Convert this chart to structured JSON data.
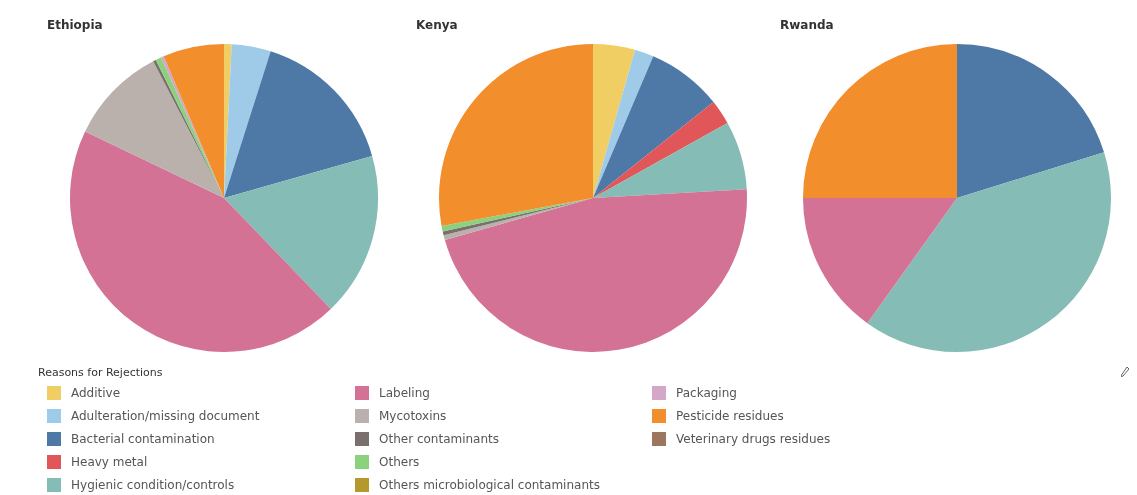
{
  "chart_data": {
    "type": "pie",
    "legend": "bottom",
    "legend_title": "Reasons for Rejections",
    "categories": [
      "Additive",
      "Adulteration/missing document",
      "Bacterial contamination",
      "Heavy metal",
      "Hygienic condition/controls",
      "Labeling",
      "Mycotoxins",
      "Other contaminants",
      "Others",
      "Others microbiological contaminants",
      "Packaging",
      "Pesticide residues",
      "Veterinary drugs residues"
    ],
    "colors": [
      "#f1ce63",
      "#a0cbe8",
      "#4e79a7",
      "#e15759",
      "#86bcb6",
      "#d37295",
      "#bab0ac",
      "#79706e",
      "#8cd17d",
      "#b6992d",
      "#d4a6c8",
      "#f28e2b",
      "#9d7660"
    ],
    "series": [
      {
        "name": "Ethiopia",
        "values": [
          0.8,
          4.1,
          15.7,
          0,
          17.2,
          44.3,
          10.3,
          0.3,
          0.6,
          0,
          0.3,
          6.4,
          0
        ]
      },
      {
        "name": "Kenya",
        "values": [
          4.4,
          2.0,
          7.9,
          2.6,
          7.2,
          46.5,
          0.5,
          0.4,
          0.6,
          0,
          0,
          27.9,
          0
        ]
      },
      {
        "name": "Rwanda",
        "values": [
          0,
          0,
          20.2,
          0,
          39.7,
          15.1,
          0,
          0,
          0,
          0,
          0,
          25.0,
          0
        ]
      }
    ]
  }
}
